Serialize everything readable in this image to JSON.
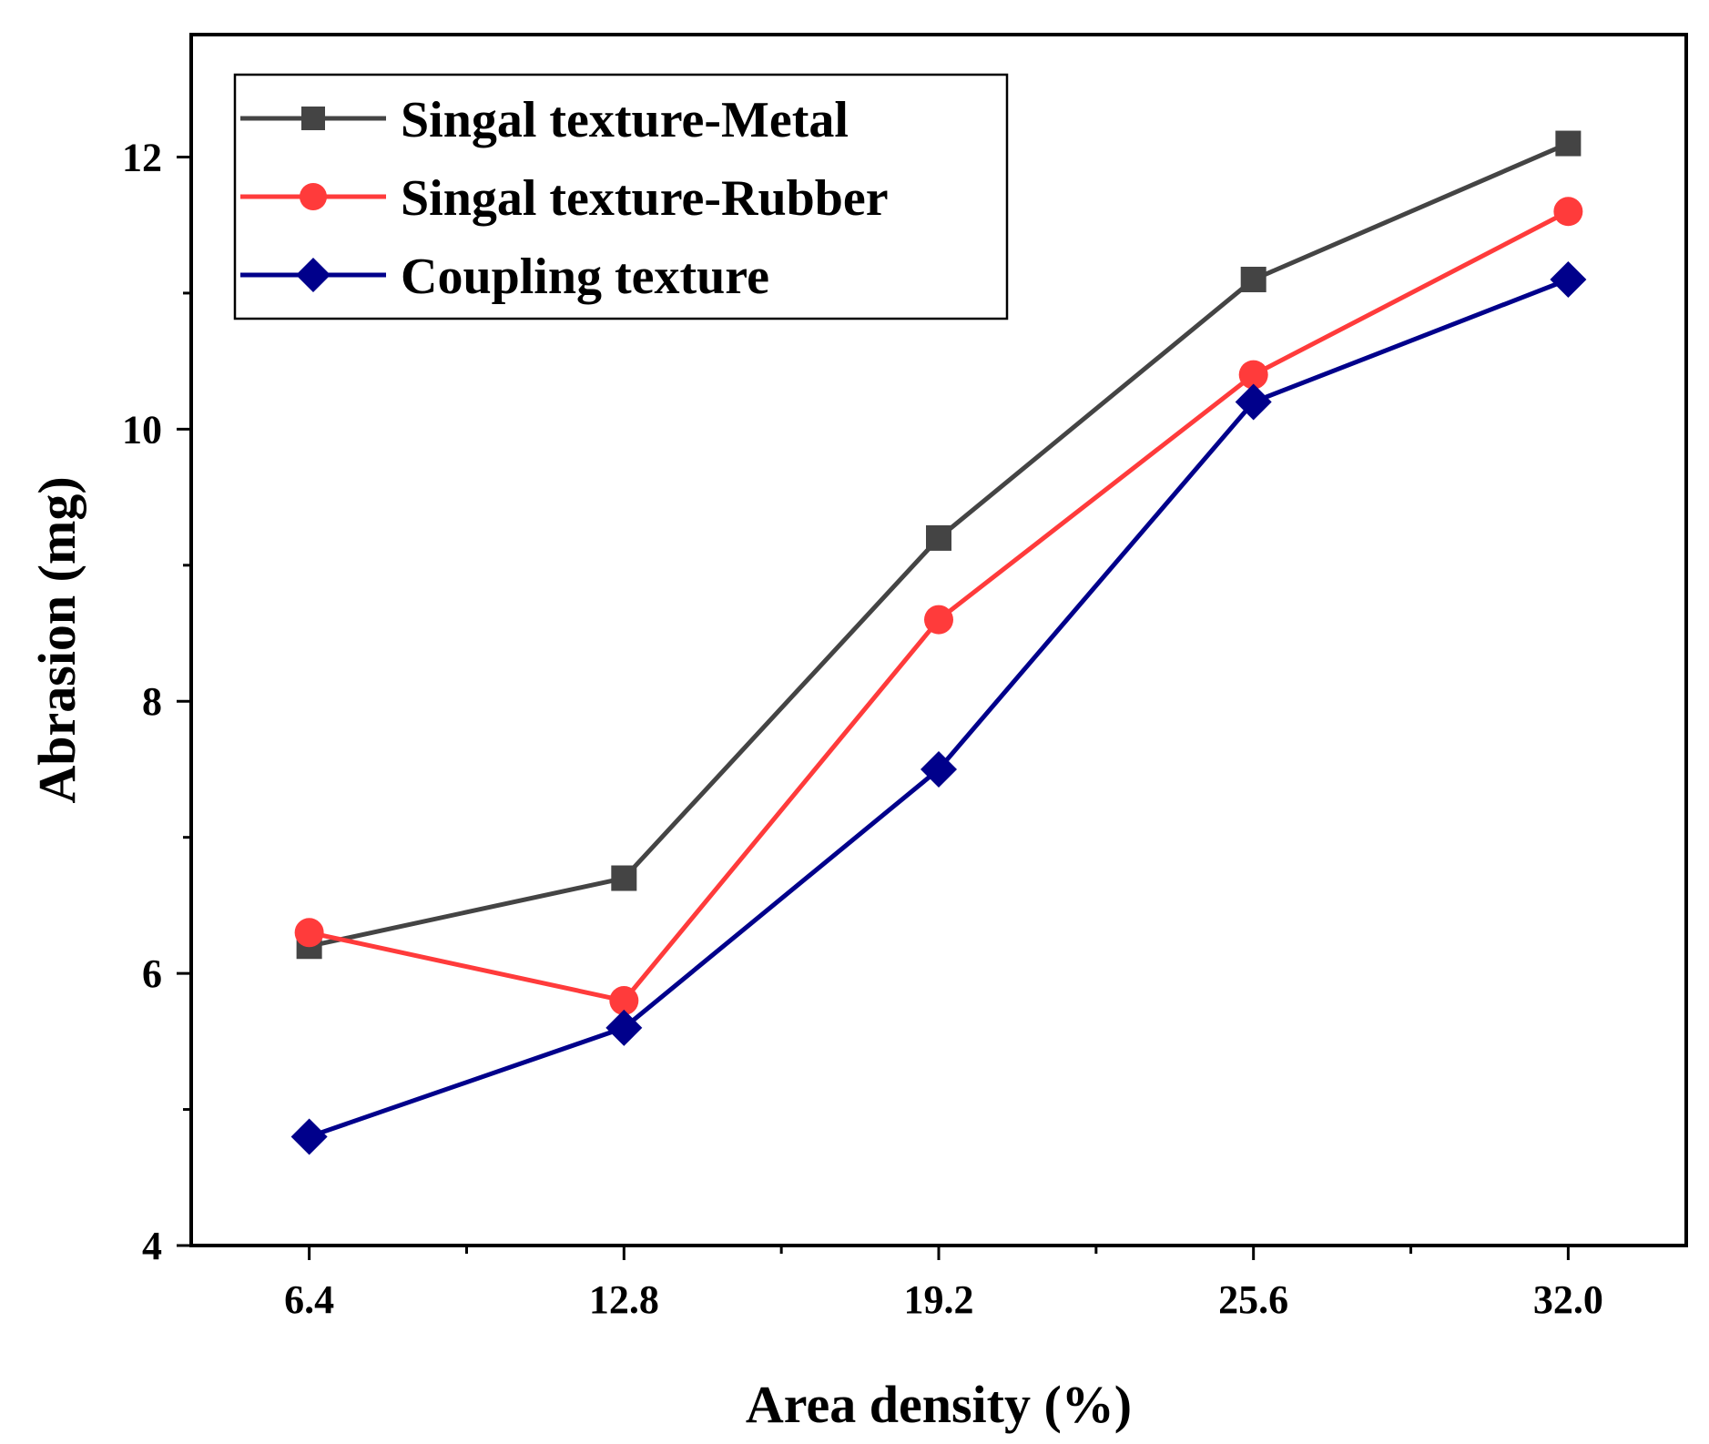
{
  "chart_data": {
    "type": "line",
    "title": "",
    "xlabel": "Area density (%)",
    "ylabel": "Abrasion (mg)",
    "x": [
      6.4,
      12.8,
      19.2,
      25.6,
      32.0
    ],
    "x_tick_labels": [
      "6.4",
      "12.8",
      "19.2",
      "25.6",
      "32.0"
    ],
    "y_ticks": [
      4,
      6,
      8,
      10,
      12
    ],
    "y_tick_labels": [
      "4",
      "6",
      "8",
      "10",
      "12"
    ],
    "xlim": [
      4.0,
      34.4
    ],
    "ylim": [
      4,
      12.9
    ],
    "grid": false,
    "legend_position": "top-left",
    "series": [
      {
        "name": "Singal texture-Metal",
        "values": [
          6.2,
          6.7,
          9.2,
          11.1,
          12.1
        ],
        "color": "#444444",
        "marker": "square"
      },
      {
        "name": "Singal texture-Rubber",
        "values": [
          6.3,
          5.8,
          8.6,
          10.4,
          11.6
        ],
        "color": "#ff3b3b",
        "marker": "circle"
      },
      {
        "name": "Coupling texture",
        "values": [
          4.8,
          5.6,
          7.5,
          10.2,
          11.1
        ],
        "color": "#00008b",
        "marker": "diamond"
      }
    ]
  }
}
